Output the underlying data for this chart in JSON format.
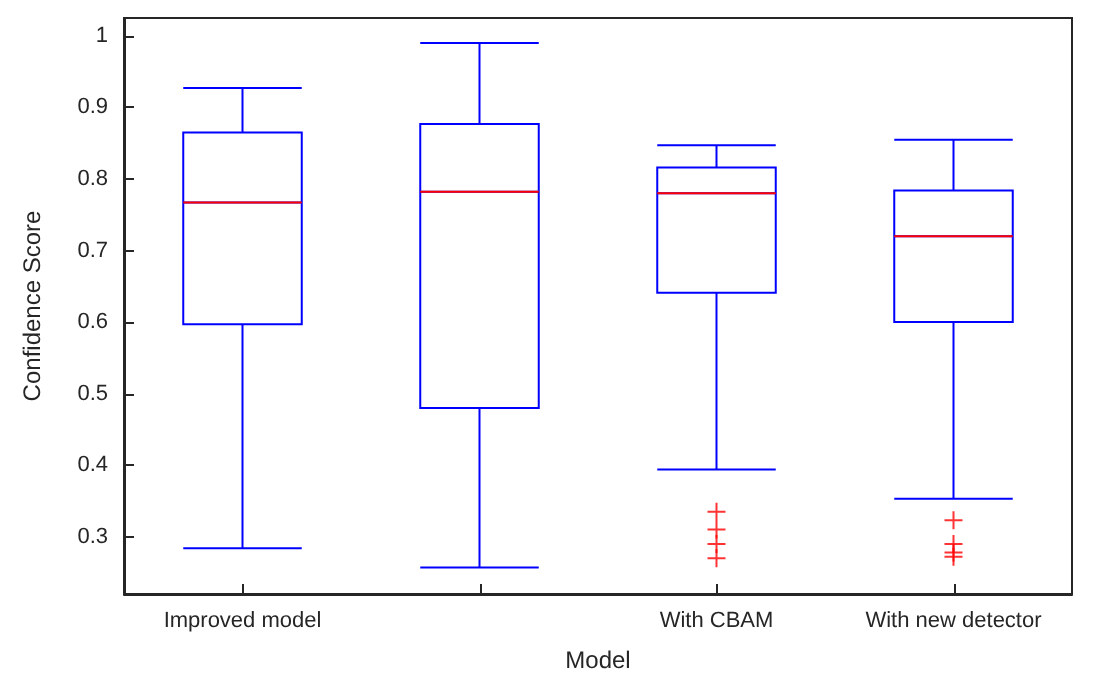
{
  "chart_data": {
    "type": "box",
    "xlabel": "Model",
    "ylabel": "Confidence Score",
    "categories": [
      "Improved model",
      null,
      "With CBAM",
      "With new detector"
    ],
    "ylim": [
      0.22,
      1.025
    ],
    "yticks": [
      0.3,
      0.4,
      0.5,
      0.6,
      0.7,
      0.8,
      0.9,
      1
    ],
    "series": [
      {
        "color": "#0000ff",
        "boxes": [
          {
            "low": 0.284,
            "q1": 0.597,
            "median": 0.767,
            "q3": 0.865,
            "high": 0.927
          },
          {
            "low": 0.257,
            "q1": 0.48,
            "median": 0.782,
            "q3": 0.877,
            "high": 0.99
          },
          {
            "low": 0.394,
            "q1": 0.641,
            "median": 0.78,
            "q3": 0.816,
            "high": 0.847,
            "outliers": [
              0.335,
              0.31,
              0.29,
              0.27
            ]
          },
          {
            "low": 0.353,
            "q1": 0.6,
            "median": 0.72,
            "q3": 0.784,
            "high": 0.855,
            "outliers": [
              0.323,
              0.29,
              0.278,
              0.272
            ]
          }
        ]
      }
    ]
  }
}
